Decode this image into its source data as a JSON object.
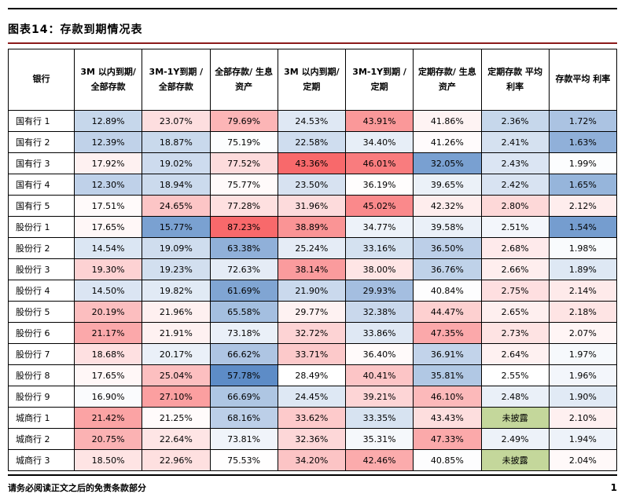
{
  "page": {
    "title": "图表14：存款到期情况表",
    "footer": {
      "disclaimer": "请务必阅读正文之后的免责条款部分",
      "page_number": "1"
    }
  },
  "colors": {
    "heat_low": "#5A8AC6",
    "heat_mid": "#FFFFFF",
    "heat_high": "#F8696B",
    "not_disclosed_bg": "#C4D79B",
    "title_rule": "#8B1A1A",
    "top_rule": "#000000",
    "table_border": "#000000"
  },
  "chart_data": {
    "type": "table",
    "title": "图表14：存款到期情况表",
    "columns": [
      "银行",
      "3M 以内到期/全部存款",
      "3M-1Y到期 / 全部存款",
      "全部存款/ 生息资产",
      "3M 以内到期/定期",
      "3M-1Y到期 / 定期",
      "定期存款/ 生息资产",
      "定期存款 平均利率",
      "存款平均 利率"
    ],
    "rows": [
      {
        "bank": "国有行 1",
        "values": [
          "12.89%",
          "23.07%",
          "79.69%",
          "24.53%",
          "43.91%",
          "41.86%",
          "2.36%",
          "1.72%"
        ]
      },
      {
        "bank": "国有行 2",
        "values": [
          "12.39%",
          "18.87%",
          "75.19%",
          "22.58%",
          "34.40%",
          "41.26%",
          "2.41%",
          "1.63%"
        ]
      },
      {
        "bank": "国有行 3",
        "values": [
          "17.92%",
          "19.02%",
          "77.52%",
          "43.36%",
          "46.01%",
          "32.05%",
          "2.43%",
          "1.99%"
        ]
      },
      {
        "bank": "国有行 4",
        "values": [
          "12.30%",
          "18.94%",
          "75.77%",
          "23.50%",
          "36.19%",
          "39.65%",
          "2.42%",
          "1.65%"
        ]
      },
      {
        "bank": "国有行 5",
        "values": [
          "17.51%",
          "24.65%",
          "77.28%",
          "31.96%",
          "45.02%",
          "42.32%",
          "2.80%",
          "2.12%"
        ]
      },
      {
        "bank": "股份行 1",
        "values": [
          "17.65%",
          "15.77%",
          "87.23%",
          "38.89%",
          "34.77%",
          "39.58%",
          "2.51%",
          "1.54%"
        ]
      },
      {
        "bank": "股份行 2",
        "values": [
          "14.54%",
          "19.09%",
          "63.38%",
          "25.24%",
          "33.16%",
          "36.50%",
          "2.68%",
          "1.98%"
        ]
      },
      {
        "bank": "股份行 3",
        "values": [
          "19.30%",
          "19.23%",
          "72.63%",
          "38.14%",
          "38.00%",
          "36.76%",
          "2.66%",
          "1.89%"
        ]
      },
      {
        "bank": "股份行 4",
        "values": [
          "14.50%",
          "19.82%",
          "61.69%",
          "21.90%",
          "29.93%",
          "40.84%",
          "2.75%",
          "2.14%"
        ]
      },
      {
        "bank": "股份行 5",
        "values": [
          "20.19%",
          "21.96%",
          "65.58%",
          "29.77%",
          "32.38%",
          "44.47%",
          "2.65%",
          "2.18%"
        ]
      },
      {
        "bank": "股份行 6",
        "values": [
          "21.17%",
          "21.91%",
          "73.18%",
          "32.72%",
          "33.86%",
          "47.35%",
          "2.73%",
          "2.07%"
        ]
      },
      {
        "bank": "股份行 7",
        "values": [
          "18.68%",
          "20.17%",
          "66.62%",
          "33.71%",
          "36.40%",
          "36.91%",
          "2.64%",
          "1.97%"
        ]
      },
      {
        "bank": "股份行 8",
        "values": [
          "17.65%",
          "25.04%",
          "57.78%",
          "28.49%",
          "40.41%",
          "35.81%",
          "2.55%",
          "1.96%"
        ]
      },
      {
        "bank": "股份行 9",
        "values": [
          "16.90%",
          "27.10%",
          "66.69%",
          "24.45%",
          "39.21%",
          "46.10%",
          "2.48%",
          "1.90%"
        ]
      },
      {
        "bank": "城商行 1",
        "values": [
          "21.42%",
          "21.25%",
          "68.16%",
          "33.62%",
          "33.35%",
          "43.43%",
          "未披露",
          "2.10%"
        ]
      },
      {
        "bank": "城商行 2",
        "values": [
          "20.75%",
          "22.64%",
          "73.81%",
          "32.36%",
          "35.31%",
          "47.33%",
          "2.49%",
          "1.94%"
        ]
      },
      {
        "bank": "城商行 3",
        "values": [
          "18.50%",
          "22.96%",
          "75.53%",
          "34.20%",
          "42.46%",
          "40.85%",
          "未披露",
          "2.04%"
        ]
      }
    ]
  }
}
